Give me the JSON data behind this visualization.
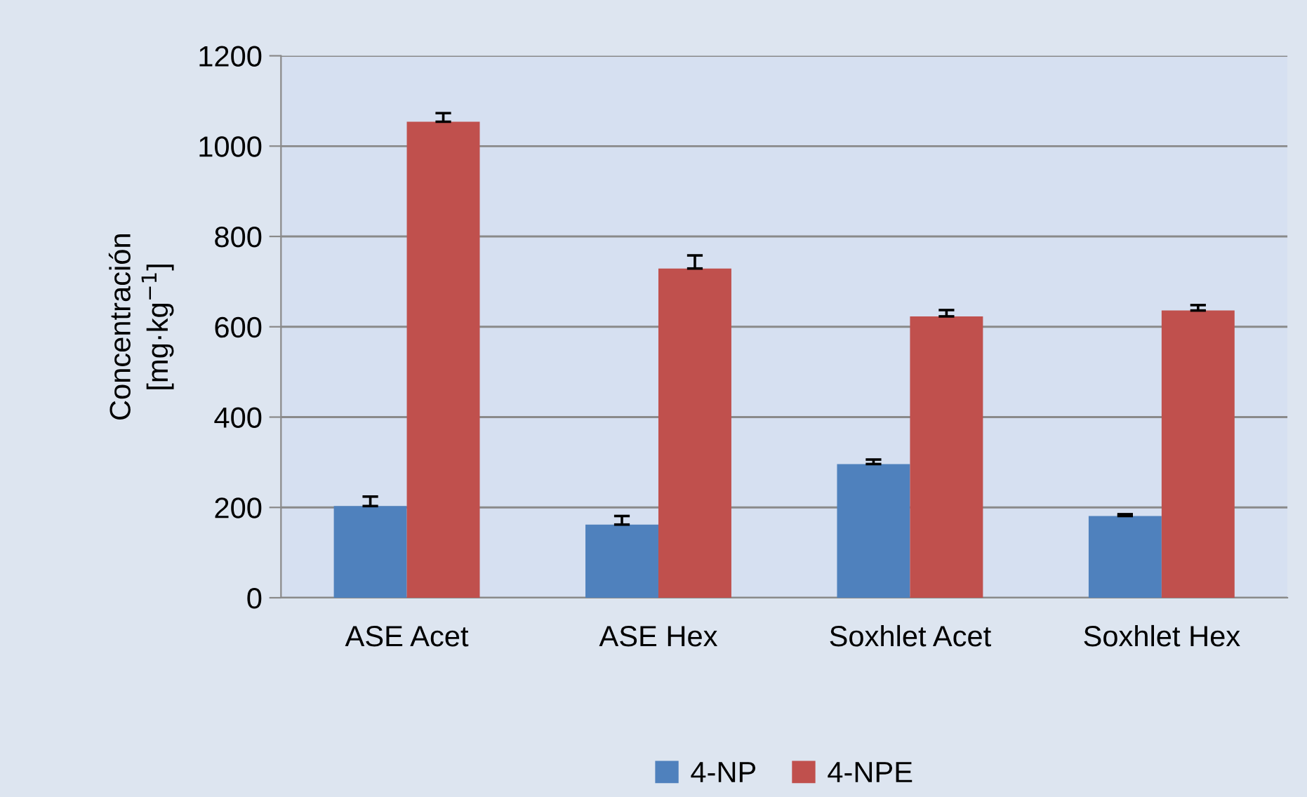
{
  "chart_data": {
    "type": "bar",
    "ylabel": "Concentración\n[mg·kg$^{−1}$]",
    "categories": [
      "ASE Acet",
      "ASE Hex",
      "Soxhlet Acet",
      "Soxhlet Hex"
    ],
    "series": [
      {
        "name": "4-NP",
        "color": "#4f81bd",
        "values": [
          203,
          162,
          296,
          181
        ],
        "errors": [
          [
            203,
            224
          ],
          [
            162,
            181
          ],
          [
            296,
            306
          ],
          [
            181,
            185
          ]
        ]
      },
      {
        "name": "4-NPE",
        "color": "#c0504d",
        "values": [
          1054,
          729,
          623,
          636
        ],
        "errors": [
          [
            1054,
            1073
          ],
          [
            729,
            758
          ],
          [
            623,
            637
          ],
          [
            636,
            648
          ]
        ]
      }
    ],
    "ylim": [
      0,
      1200
    ],
    "yticks": [
      0,
      200,
      400,
      600,
      800,
      1000,
      1200
    ],
    "grid": "y",
    "legend": "bottom"
  }
}
